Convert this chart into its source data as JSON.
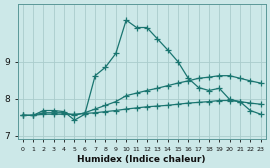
{
  "xlabel": "Humidex (Indice chaleur)",
  "bg_color": "#cce8e8",
  "grid_color": "#aacccc",
  "line_color": "#1a7570",
  "line1_x": [
    0,
    1,
    2,
    3,
    4,
    5,
    6,
    7,
    8,
    9,
    10,
    11,
    12,
    13,
    14,
    15,
    16,
    17,
    18,
    19,
    20,
    21,
    22,
    23
  ],
  "line1_y": [
    7.55,
    7.55,
    7.68,
    7.68,
    7.65,
    7.42,
    7.58,
    8.62,
    8.85,
    9.22,
    10.12,
    9.92,
    9.92,
    9.62,
    9.32,
    9.0,
    8.55,
    8.3,
    8.22,
    8.28,
    7.98,
    7.92,
    7.68,
    7.58
  ],
  "line2_x": [
    0,
    1,
    2,
    3,
    4,
    5,
    6,
    7,
    8,
    9,
    10,
    11,
    12,
    13,
    14,
    15,
    16,
    17,
    18,
    19,
    20,
    21,
    22,
    23
  ],
  "line2_y": [
    7.55,
    7.55,
    7.62,
    7.62,
    7.62,
    7.55,
    7.62,
    7.72,
    7.82,
    7.92,
    8.08,
    8.15,
    8.22,
    8.28,
    8.35,
    8.42,
    8.48,
    8.55,
    8.58,
    8.62,
    8.62,
    8.55,
    8.48,
    8.42
  ],
  "line3_x": [
    0,
    1,
    2,
    3,
    4,
    5,
    6,
    7,
    8,
    9,
    10,
    11,
    12,
    13,
    14,
    15,
    16,
    17,
    18,
    19,
    20,
    21,
    22,
    23
  ],
  "line3_y": [
    7.55,
    7.55,
    7.58,
    7.58,
    7.58,
    7.58,
    7.6,
    7.62,
    7.65,
    7.68,
    7.72,
    7.75,
    7.78,
    7.8,
    7.82,
    7.85,
    7.88,
    7.9,
    7.92,
    7.95,
    7.95,
    7.92,
    7.88,
    7.85
  ],
  "xlim": [
    -0.5,
    23.5
  ],
  "ylim": [
    6.9,
    10.55
  ],
  "yticks": [
    7,
    8,
    9
  ],
  "xticks": [
    0,
    1,
    2,
    3,
    4,
    5,
    6,
    7,
    8,
    9,
    10,
    11,
    12,
    13,
    14,
    15,
    16,
    17,
    18,
    19,
    20,
    21,
    22,
    23
  ]
}
